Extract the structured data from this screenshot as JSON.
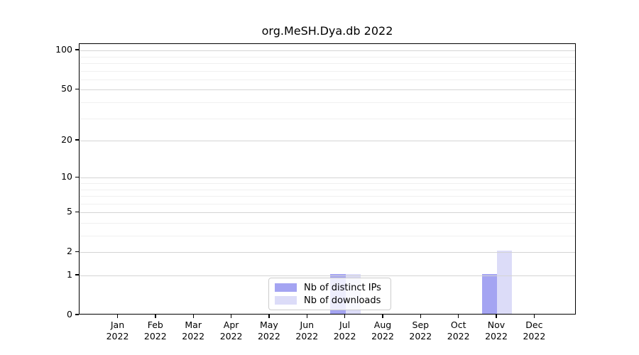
{
  "title": "org.MeSH.Dya.db 2022",
  "colors": {
    "distinct_ips": "#a4a4f2",
    "downloads": "#dcdcf8",
    "grid_major": "#d4d4d4",
    "grid_minor": "#f0f0f0",
    "axis": "#000000",
    "background": "#ffffff"
  },
  "legend": {
    "items": [
      {
        "label": "Nb of distinct IPs",
        "color": "#a4a4f2"
      },
      {
        "label": "Nb of downloads",
        "color": "#dcdcf8"
      }
    ]
  },
  "chart_data": {
    "type": "bar",
    "title": "org.MeSH.Dya.db 2022",
    "categories": [
      "Jan 2022",
      "Feb 2022",
      "Mar 2022",
      "Apr 2022",
      "May 2022",
      "Jun 2022",
      "Jul 2022",
      "Aug 2022",
      "Sep 2022",
      "Oct 2022",
      "Nov 2022",
      "Dec 2022"
    ],
    "category_month": [
      "Jan",
      "Feb",
      "Mar",
      "Apr",
      "May",
      "Jun",
      "Jul",
      "Aug",
      "Sep",
      "Oct",
      "Nov",
      "Dec"
    ],
    "category_year": [
      "2022",
      "2022",
      "2022",
      "2022",
      "2022",
      "2022",
      "2022",
      "2022",
      "2022",
      "2022",
      "2022",
      "2022"
    ],
    "series": [
      {
        "name": "Nb of distinct IPs",
        "color": "#a4a4f2",
        "values": [
          0,
          0,
          0,
          0,
          0,
          0,
          1,
          0,
          0,
          0,
          1,
          0
        ]
      },
      {
        "name": "Nb of downloads",
        "color": "#dcdcf8",
        "values": [
          0,
          0,
          0,
          0,
          0,
          0,
          1,
          0,
          0,
          0,
          2,
          0
        ]
      }
    ],
    "yscale": "log1p",
    "ylim": [
      0,
      112
    ],
    "yticks": [
      0,
      1,
      2,
      5,
      10,
      20,
      50,
      100
    ],
    "yticks_minor": [
      3,
      4,
      6,
      7,
      8,
      9,
      30,
      40,
      60,
      70,
      80,
      90
    ],
    "grid": true,
    "legend_position": "lower-center-inside"
  }
}
